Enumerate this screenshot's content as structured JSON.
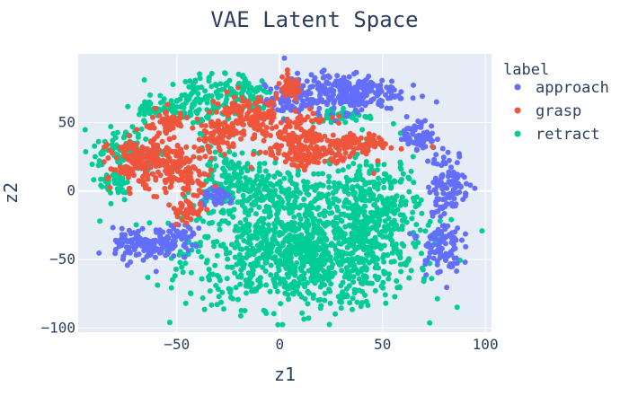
{
  "chart_data": {
    "type": "scatter",
    "title": "VAE Latent Space",
    "xlabel": "z1",
    "ylabel": "z2",
    "xlim": [
      -98,
      103
    ],
    "ylim": [
      -103,
      100
    ],
    "x_ticks": [
      -50,
      0,
      50,
      100
    ],
    "y_ticks": [
      -100,
      -50,
      0,
      50
    ],
    "grid": true,
    "legend": {
      "title": "label",
      "position": "right"
    },
    "series": [
      {
        "name": "approach",
        "color": "#636efa",
        "clusters": [
          {
            "cx": 30,
            "cy": 72,
            "sx": 14,
            "sy": 7,
            "n": 260
          },
          {
            "cx": 5,
            "cy": 65,
            "sx": 6,
            "sy": 6,
            "n": 60
          },
          {
            "cx": 68,
            "cy": 40,
            "sx": 4,
            "sy": 5,
            "n": 70
          },
          {
            "cx": 82,
            "cy": 5,
            "sx": 5,
            "sy": 12,
            "n": 110
          },
          {
            "cx": 78,
            "cy": -40,
            "sx": 5,
            "sy": 10,
            "n": 90
          },
          {
            "cx": -65,
            "cy": -40,
            "sx": 8,
            "sy": 6,
            "n": 130
          },
          {
            "cx": -48,
            "cy": -32,
            "sx": 5,
            "sy": 6,
            "n": 50
          },
          {
            "cx": -30,
            "cy": -5,
            "sx": 4,
            "sy": 3,
            "n": 40
          }
        ]
      },
      {
        "name": "grasp",
        "color": "#ef553b",
        "clusters": [
          {
            "cx": 5,
            "cy": 75,
            "sx": 3,
            "sy": 4,
            "n": 50
          },
          {
            "cx": -15,
            "cy": 55,
            "sx": 10,
            "sy": 8,
            "n": 140
          },
          {
            "cx": 10,
            "cy": 40,
            "sx": 8,
            "sy": 7,
            "n": 110
          },
          {
            "cx": 15,
            "cy": 25,
            "sx": 12,
            "sy": 4,
            "n": 120
          },
          {
            "cx": 40,
            "cy": 35,
            "sx": 8,
            "sy": 3,
            "n": 80
          },
          {
            "cx": -55,
            "cy": 50,
            "sx": 5,
            "sy": 5,
            "n": 50
          },
          {
            "cx": -65,
            "cy": 20,
            "sx": 9,
            "sy": 10,
            "n": 200
          },
          {
            "cx": -45,
            "cy": 15,
            "sx": 6,
            "sy": 8,
            "n": 80
          },
          {
            "cx": -45,
            "cy": -15,
            "sx": 4,
            "sy": 4,
            "n": 40
          },
          {
            "cx": -30,
            "cy": 40,
            "sx": 5,
            "sy": 6,
            "n": 60
          }
        ]
      },
      {
        "name": "retract",
        "color": "#00cc96",
        "clusters": [
          {
            "cx": 10,
            "cy": -45,
            "sx": 28,
            "sy": 20,
            "n": 1000
          },
          {
            "cx": 45,
            "cy": -15,
            "sx": 12,
            "sy": 22,
            "n": 320
          },
          {
            "cx": -25,
            "cy": 10,
            "sx": 8,
            "sy": 12,
            "n": 120
          },
          {
            "cx": -40,
            "cy": 65,
            "sx": 10,
            "sy": 10,
            "n": 140
          },
          {
            "cx": -75,
            "cy": 30,
            "sx": 8,
            "sy": 8,
            "n": 100
          },
          {
            "cx": -80,
            "cy": 5,
            "sx": 4,
            "sy": 6,
            "n": 40
          },
          {
            "cx": -15,
            "cy": 70,
            "sx": 6,
            "sy": 8,
            "n": 80
          },
          {
            "cx": 30,
            "cy": 55,
            "sx": 8,
            "sy": 3,
            "n": 40
          },
          {
            "cx": -60,
            "cy": 60,
            "sx": 6,
            "sy": 4,
            "n": 40
          },
          {
            "cx": 0,
            "cy": 0,
            "sx": 15,
            "sy": 8,
            "n": 160
          }
        ]
      }
    ]
  }
}
